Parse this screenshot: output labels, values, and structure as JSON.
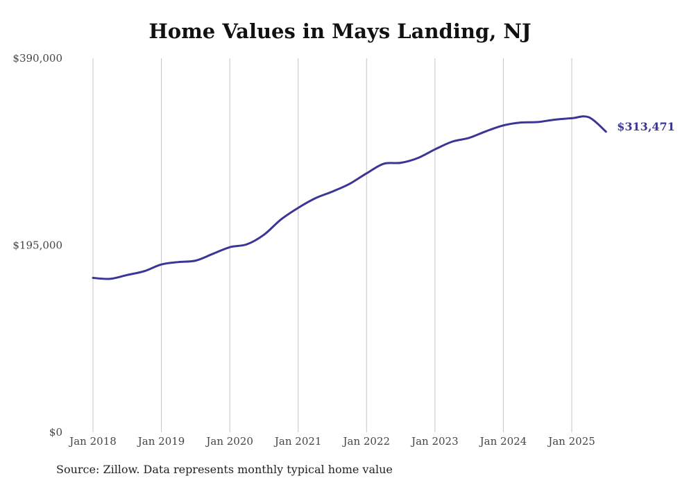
{
  "chart_data": {
    "type": "line",
    "title": "Home Values in Mays Landing, NJ",
    "source_note": "Source: Zillow. Data represents monthly typical home value",
    "y_ticks": [
      "$0",
      "$195,000",
      "$390,000"
    ],
    "y_tick_values": [
      0,
      195000,
      390000
    ],
    "ylim": [
      0,
      390000
    ],
    "x_ticks": [
      "Jan 2018",
      "Jan 2019",
      "Jan 2020",
      "Jan 2021",
      "Jan 2022",
      "Jan 2023",
      "Jan 2024",
      "Jan 2025"
    ],
    "x_tick_values": [
      2018,
      2019,
      2020,
      2021,
      2022,
      2023,
      2024,
      2025
    ],
    "grid": "vertical",
    "line_color": "#3a3596",
    "end_label": "$313,471",
    "series": [
      {
        "x": [
          2018.0,
          2018.25,
          2018.5,
          2018.75,
          2019.0,
          2019.25,
          2019.5,
          2019.75,
          2020.0,
          2020.25,
          2020.5,
          2020.75,
          2021.0,
          2021.25,
          2021.5,
          2021.75,
          2022.0,
          2022.25,
          2022.5,
          2022.75,
          2023.0,
          2023.25,
          2023.5,
          2023.75,
          2024.0,
          2024.25,
          2024.5,
          2024.75,
          2025.0,
          2025.25,
          2025.5
        ],
        "values": [
          161000,
          160000,
          164000,
          168000,
          175000,
          177500,
          179000,
          186000,
          193000,
          196000,
          206000,
          222000,
          234000,
          244000,
          251000,
          259000,
          270000,
          280000,
          281000,
          286000,
          295000,
          303000,
          307000,
          314000,
          320000,
          323000,
          323500,
          326000,
          327500,
          328500,
          313471
        ]
      }
    ]
  }
}
